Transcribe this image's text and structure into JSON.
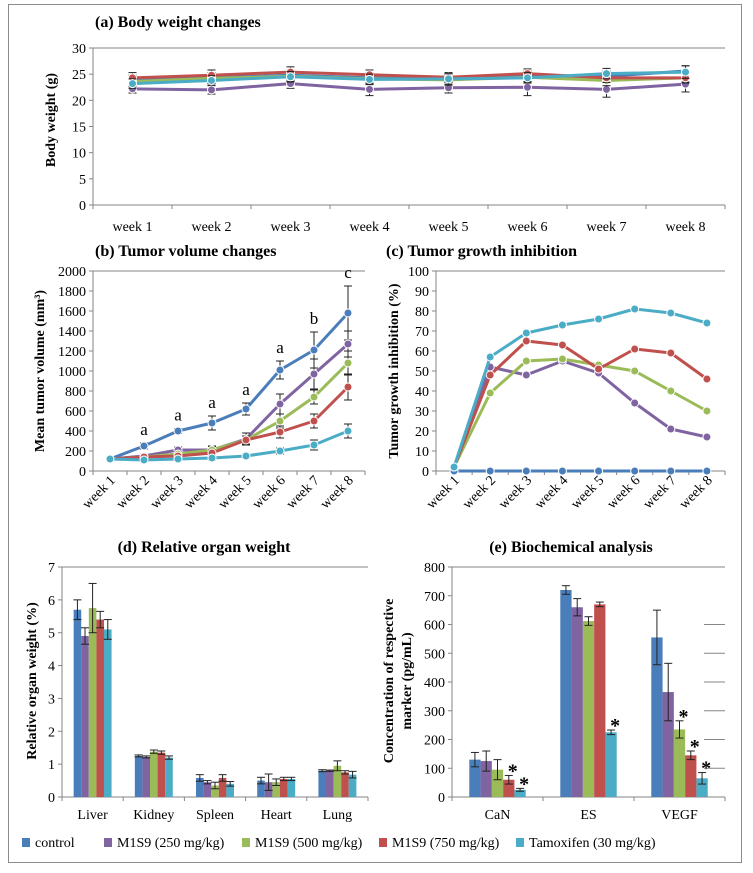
{
  "colors": {
    "control": "#4a7ebb",
    "M1S9_250": "#8064a2",
    "M1S9_500": "#9bbb59",
    "M1S9_750": "#c0504d",
    "tamoxifen": "#4bacc6"
  },
  "legend": [
    {
      "key": "control",
      "label": "control"
    },
    {
      "key": "M1S9_250",
      "label": "M1S9 (250 mg/kg)"
    },
    {
      "key": "M1S9_500",
      "label": "M1S9 (500 mg/kg)"
    },
    {
      "key": "M1S9_750",
      "label": "M1S9 (750 mg/kg)"
    },
    {
      "key": "tamoxifen",
      "label": "Tamoxifen (30 mg/kg)"
    }
  ],
  "chart_data": [
    {
      "id": "a",
      "type": "line",
      "title": "(a) Body weight changes",
      "xlabel": "",
      "ylabel": "Body weight (g)",
      "ylim": [
        0,
        30
      ],
      "yticks": [
        0,
        5,
        10,
        15,
        20,
        25,
        30
      ],
      "categories": [
        "week 1",
        "week 2",
        "week 3",
        "week 4",
        "week 5",
        "week 6",
        "week 7",
        "week 8"
      ],
      "series": [
        {
          "key": "control",
          "values": [
            23.8,
            24.3,
            24.8,
            24.3,
            24.0,
            24.6,
            24.6,
            25.6
          ],
          "errors": [
            1.0,
            1.0,
            1.0,
            1.0,
            1.0,
            1.0,
            1.0,
            1.0
          ]
        },
        {
          "key": "M1S9_250",
          "values": [
            22.2,
            22.0,
            23.2,
            22.1,
            22.4,
            22.5,
            22.1,
            23.1
          ],
          "errors": [
            0.8,
            0.8,
            0.9,
            1.2,
            1.0,
            1.6,
            1.5,
            1.5
          ]
        },
        {
          "key": "M1S9_500",
          "values": [
            23.6,
            24.2,
            24.6,
            24.1,
            23.9,
            24.4,
            23.8,
            24.3
          ],
          "errors": [
            1.0,
            1.0,
            1.0,
            1.0,
            1.0,
            1.0,
            1.0,
            1.0
          ]
        },
        {
          "key": "M1S9_750",
          "values": [
            24.3,
            24.8,
            25.4,
            24.9,
            24.4,
            25.1,
            24.3,
            24.3
          ],
          "errors": [
            1.0,
            1.0,
            1.0,
            0.9,
            0.9,
            0.9,
            0.9,
            0.8
          ]
        },
        {
          "key": "tamoxifen",
          "values": [
            23.2,
            23.8,
            24.5,
            24.0,
            24.1,
            24.3,
            25.1,
            25.4
          ],
          "errors": [
            0.9,
            0.9,
            1.0,
            1.0,
            1.0,
            1.0,
            1.0,
            1.2
          ]
        }
      ]
    },
    {
      "id": "b",
      "type": "line",
      "title": "(b) Tumor volume changes",
      "xlabel": "",
      "ylabel": "Mean tumor volume (mm³)",
      "ylim": [
        0,
        2000
      ],
      "yticks": [
        0,
        200,
        400,
        600,
        800,
        1000,
        1200,
        1400,
        1600,
        1800,
        2000
      ],
      "categories": [
        "week 1",
        "week 2",
        "week 3",
        "week 4",
        "week 5",
        "week 6",
        "week 7",
        "week 8"
      ],
      "annotations": [
        {
          "index": 1,
          "value": 250,
          "text": "a"
        },
        {
          "index": 2,
          "value": 400,
          "text": "a"
        },
        {
          "index": 3,
          "value": 480,
          "text": "a"
        },
        {
          "index": 4,
          "value": 620,
          "text": "a"
        },
        {
          "index": 5,
          "value": 1010,
          "text": "a"
        },
        {
          "index": 6,
          "value": 1210,
          "text": "b"
        },
        {
          "index": 7,
          "value": 1580,
          "text": "c"
        }
      ],
      "series": [
        {
          "key": "control",
          "values": [
            120,
            250,
            400,
            480,
            620,
            1010,
            1210,
            1580
          ],
          "errors": [
            15,
            30,
            25,
            70,
            60,
            90,
            180,
            270
          ]
        },
        {
          "key": "M1S9_250",
          "values": [
            120,
            150,
            210,
            210,
            320,
            670,
            970,
            1270
          ],
          "errors": [
            10,
            20,
            30,
            40,
            60,
            100,
            150,
            130
          ]
        },
        {
          "key": "M1S9_500",
          "values": [
            120,
            140,
            170,
            210,
            310,
            500,
            740,
            1080
          ],
          "errors": [
            10,
            20,
            25,
            35,
            40,
            70,
            70,
            120
          ]
        },
        {
          "key": "M1S9_750",
          "values": [
            120,
            140,
            150,
            180,
            310,
            390,
            500,
            840
          ],
          "errors": [
            10,
            15,
            20,
            30,
            40,
            60,
            70,
            130
          ]
        },
        {
          "key": "tamoxifen",
          "values": [
            120,
            110,
            120,
            130,
            150,
            200,
            260,
            400
          ],
          "errors": [
            10,
            15,
            15,
            20,
            20,
            30,
            50,
            70
          ]
        }
      ]
    },
    {
      "id": "c",
      "type": "line",
      "title": "(c) Tumor growth inhibition",
      "xlabel": "",
      "ylabel": "Tumor growth inhibition (%)",
      "ylim": [
        0,
        100
      ],
      "yticks": [
        0,
        10,
        20,
        30,
        40,
        50,
        60,
        70,
        80,
        90,
        100
      ],
      "categories": [
        "week 1",
        "week 2",
        "week 3",
        "week 4",
        "week 5",
        "week 6",
        "week 7",
        "week 8"
      ],
      "series": [
        {
          "key": "control",
          "values": [
            0,
            0,
            0,
            0,
            0,
            0,
            0,
            0
          ]
        },
        {
          "key": "M1S9_250",
          "values": [
            2,
            52,
            48,
            55,
            49,
            34,
            21,
            17
          ]
        },
        {
          "key": "M1S9_500",
          "values": [
            2,
            39,
            55,
            56,
            53,
            50,
            40,
            30
          ]
        },
        {
          "key": "M1S9_750",
          "values": [
            2,
            48,
            65,
            63,
            51,
            61,
            59,
            46
          ]
        },
        {
          "key": "tamoxifen",
          "values": [
            2,
            57,
            69,
            73,
            76,
            81,
            79,
            74
          ]
        }
      ]
    },
    {
      "id": "d",
      "type": "bar",
      "title": "(d) Relative organ weight",
      "xlabel": "",
      "ylabel": "Relative organ weight (%)",
      "ylim": [
        0,
        7
      ],
      "yticks": [
        0,
        1,
        2,
        3,
        4,
        5,
        6,
        7
      ],
      "categories": [
        "Liver",
        "Kidney",
        "Spleen",
        "Heart",
        "Lung"
      ],
      "series": [
        {
          "key": "control",
          "values": [
            5.7,
            1.25,
            0.58,
            0.5,
            0.8
          ],
          "errors": [
            0.3,
            0.03,
            0.1,
            0.1,
            0.03
          ]
        },
        {
          "key": "M1S9_250",
          "values": [
            4.9,
            1.22,
            0.45,
            0.45,
            0.8
          ],
          "errors": [
            0.25,
            0.03,
            0.05,
            0.25,
            0.02
          ]
        },
        {
          "key": "M1S9_500",
          "values": [
            5.75,
            1.38,
            0.35,
            0.45,
            0.95
          ],
          "errors": [
            0.75,
            0.05,
            0.1,
            0.1,
            0.15
          ]
        },
        {
          "key": "M1S9_750",
          "values": [
            5.4,
            1.35,
            0.58,
            0.55,
            0.75
          ],
          "errors": [
            0.25,
            0.05,
            0.1,
            0.05,
            0.05
          ]
        },
        {
          "key": "tamoxifen",
          "values": [
            5.1,
            1.2,
            0.4,
            0.55,
            0.68
          ],
          "errors": [
            0.3,
            0.05,
            0.07,
            0.05,
            0.1
          ]
        }
      ]
    },
    {
      "id": "e",
      "type": "bar",
      "title": "(e) Biochemical analysis",
      "xlabel": "",
      "ylabel": "Concentration of respective marker (pg/mL)",
      "ylabel_lines": [
        "Concentration of respective",
        "marker (pg/mL)"
      ],
      "ylim": [
        0,
        800
      ],
      "yticks": [
        0,
        100,
        200,
        300,
        400,
        500,
        600,
        700,
        800
      ],
      "categories": [
        "CaN",
        "ES",
        "VEGF"
      ],
      "series": [
        {
          "key": "control",
          "values": [
            130,
            720,
            555
          ],
          "errors": [
            25,
            15,
            95
          ]
        },
        {
          "key": "M1S9_250",
          "values": [
            125,
            660,
            365
          ],
          "errors": [
            35,
            30,
            100
          ]
        },
        {
          "key": "M1S9_500",
          "values": [
            95,
            612,
            235
          ],
          "errors": [
            35,
            15,
            30
          ]
        },
        {
          "key": "M1S9_750",
          "values": [
            60,
            670,
            145
          ],
          "errors": [
            15,
            8,
            15
          ]
        },
        {
          "key": "tamoxifen",
          "values": [
            25,
            225,
            65
          ],
          "errors": [
            5,
            8,
            20
          ]
        }
      ],
      "significance": [
        {
          "cat": 0,
          "key": "M1S9_750",
          "text": "*"
        },
        {
          "cat": 0,
          "key": "tamoxifen",
          "text": "*"
        },
        {
          "cat": 1,
          "key": "tamoxifen",
          "text": "*"
        },
        {
          "cat": 2,
          "key": "M1S9_500",
          "text": "*"
        },
        {
          "cat": 2,
          "key": "M1S9_750",
          "text": "*"
        },
        {
          "cat": 2,
          "key": "tamoxifen",
          "text": "*"
        }
      ]
    }
  ]
}
